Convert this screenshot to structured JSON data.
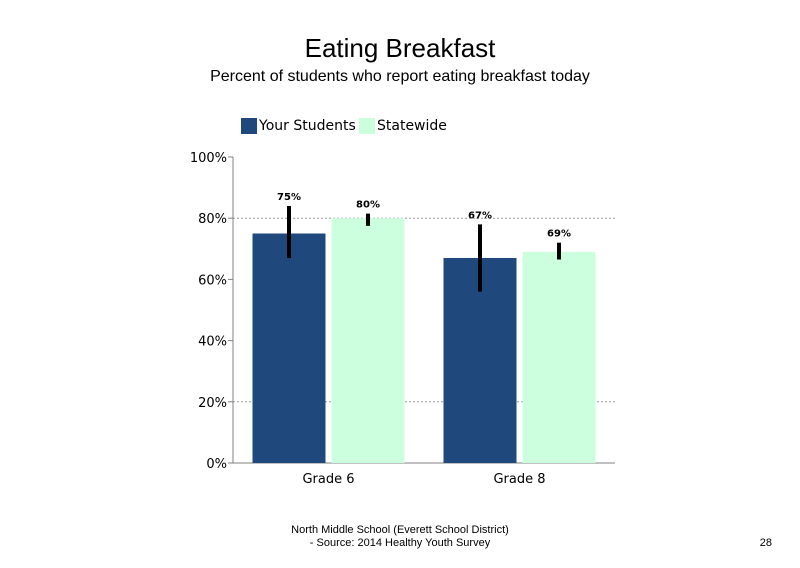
{
  "chart_data": {
    "type": "bar",
    "title": "Eating Breakfast",
    "subtitle": "Percent of students who report eating breakfast today",
    "categories": [
      "Grade 6",
      "Grade 8"
    ],
    "series": [
      {
        "name": "Your Students",
        "values": [
          75,
          67
        ],
        "labels": [
          "75%",
          "67%"
        ],
        "error_low": [
          67,
          56
        ],
        "error_high": [
          84,
          78
        ],
        "color": "#1f497d"
      },
      {
        "name": "Statewide",
        "values": [
          80,
          69
        ],
        "labels": [
          "80%",
          "69%"
        ],
        "error_low": [
          77.5,
          66.5
        ],
        "error_high": [
          81.5,
          72
        ],
        "color": "#ccffdd"
      }
    ],
    "y_ticks": [
      0,
      20,
      40,
      60,
      80,
      100
    ],
    "y_tick_labels": [
      "0%",
      "20%",
      "40%",
      "60%",
      "80%",
      "100%"
    ],
    "ylim": [
      0,
      100
    ],
    "xlabel": "",
    "ylabel": "",
    "gridlines": [
      20,
      80
    ],
    "legend_position": "top-left"
  },
  "footer": {
    "line1": "North Middle School (Everett School District)",
    "line2": "- Source: 2014 Healthy Youth Survey"
  },
  "page_number": "28"
}
